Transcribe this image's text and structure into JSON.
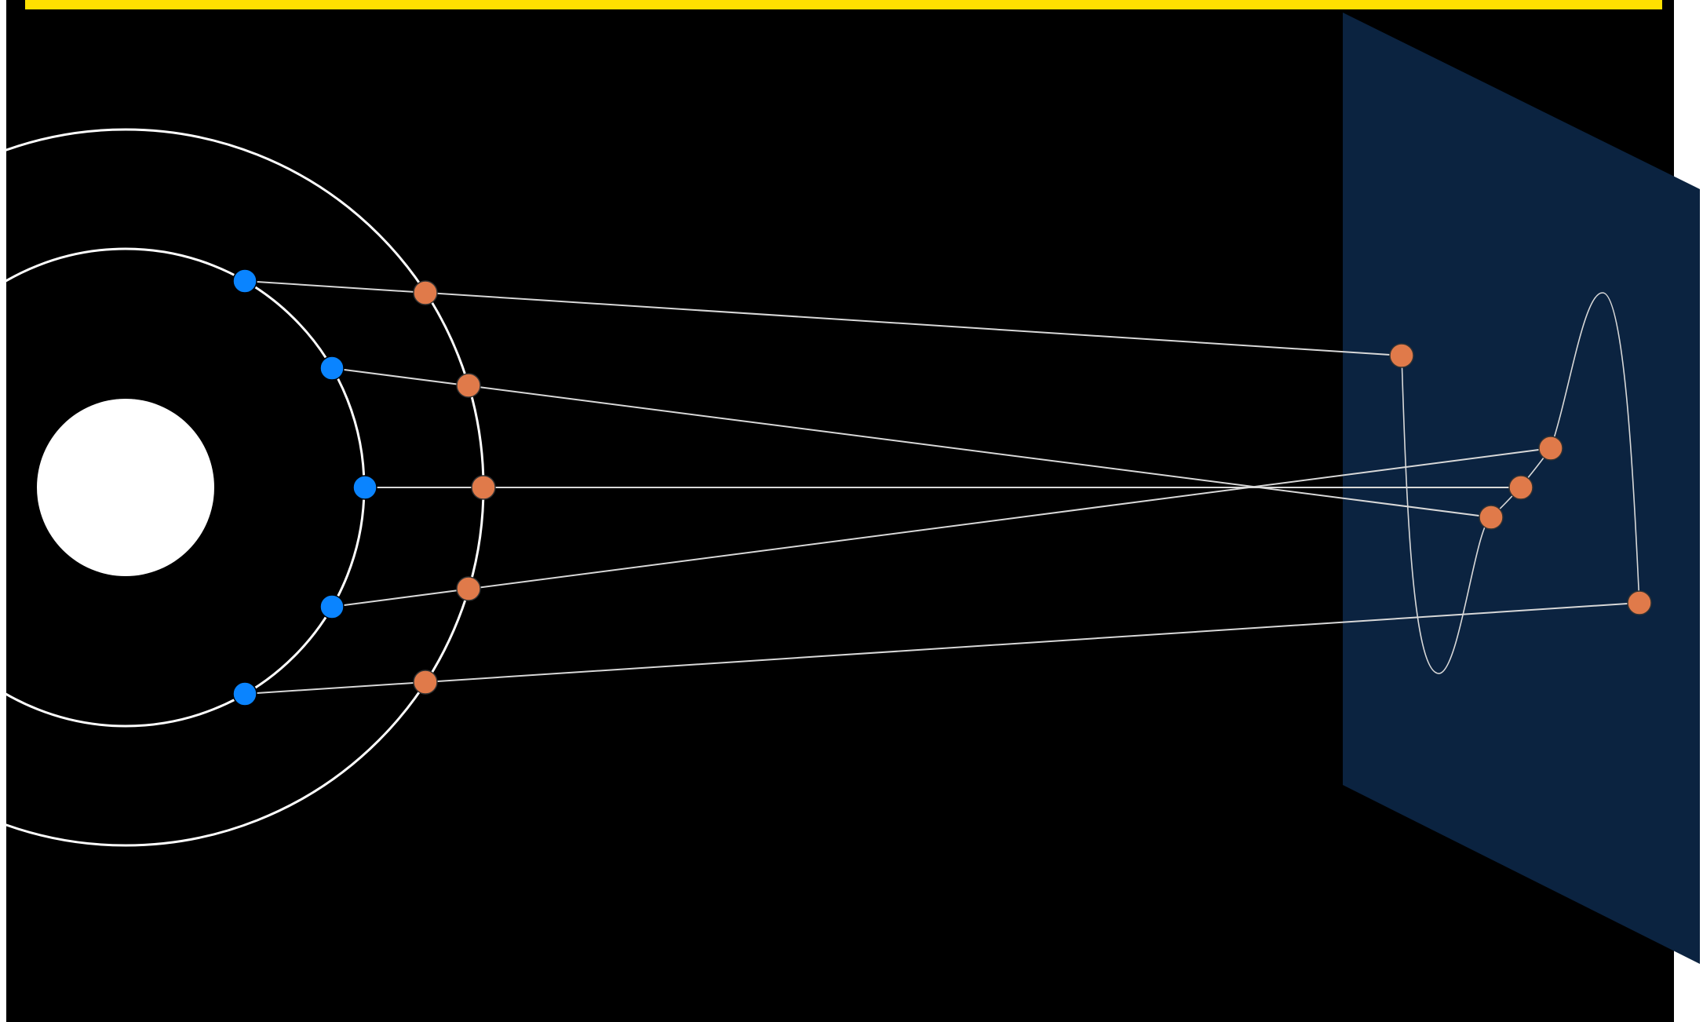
{
  "colors": {
    "background": "#000000",
    "top_bar": "#FFE000",
    "projection_plane": "#0B2340",
    "sun": "#FFFFFF",
    "orbit": "#FFFFFF",
    "sight_line": "#D8D8D8",
    "inner_planet": "#0A84FF",
    "outer_planet": "#E07A4A"
  },
  "diagram": {
    "description_icons": {
      "sun": "sun-disc",
      "inner_planet": "blue-dot",
      "outer_planet": "orange-dot"
    },
    "positions": 5
  }
}
